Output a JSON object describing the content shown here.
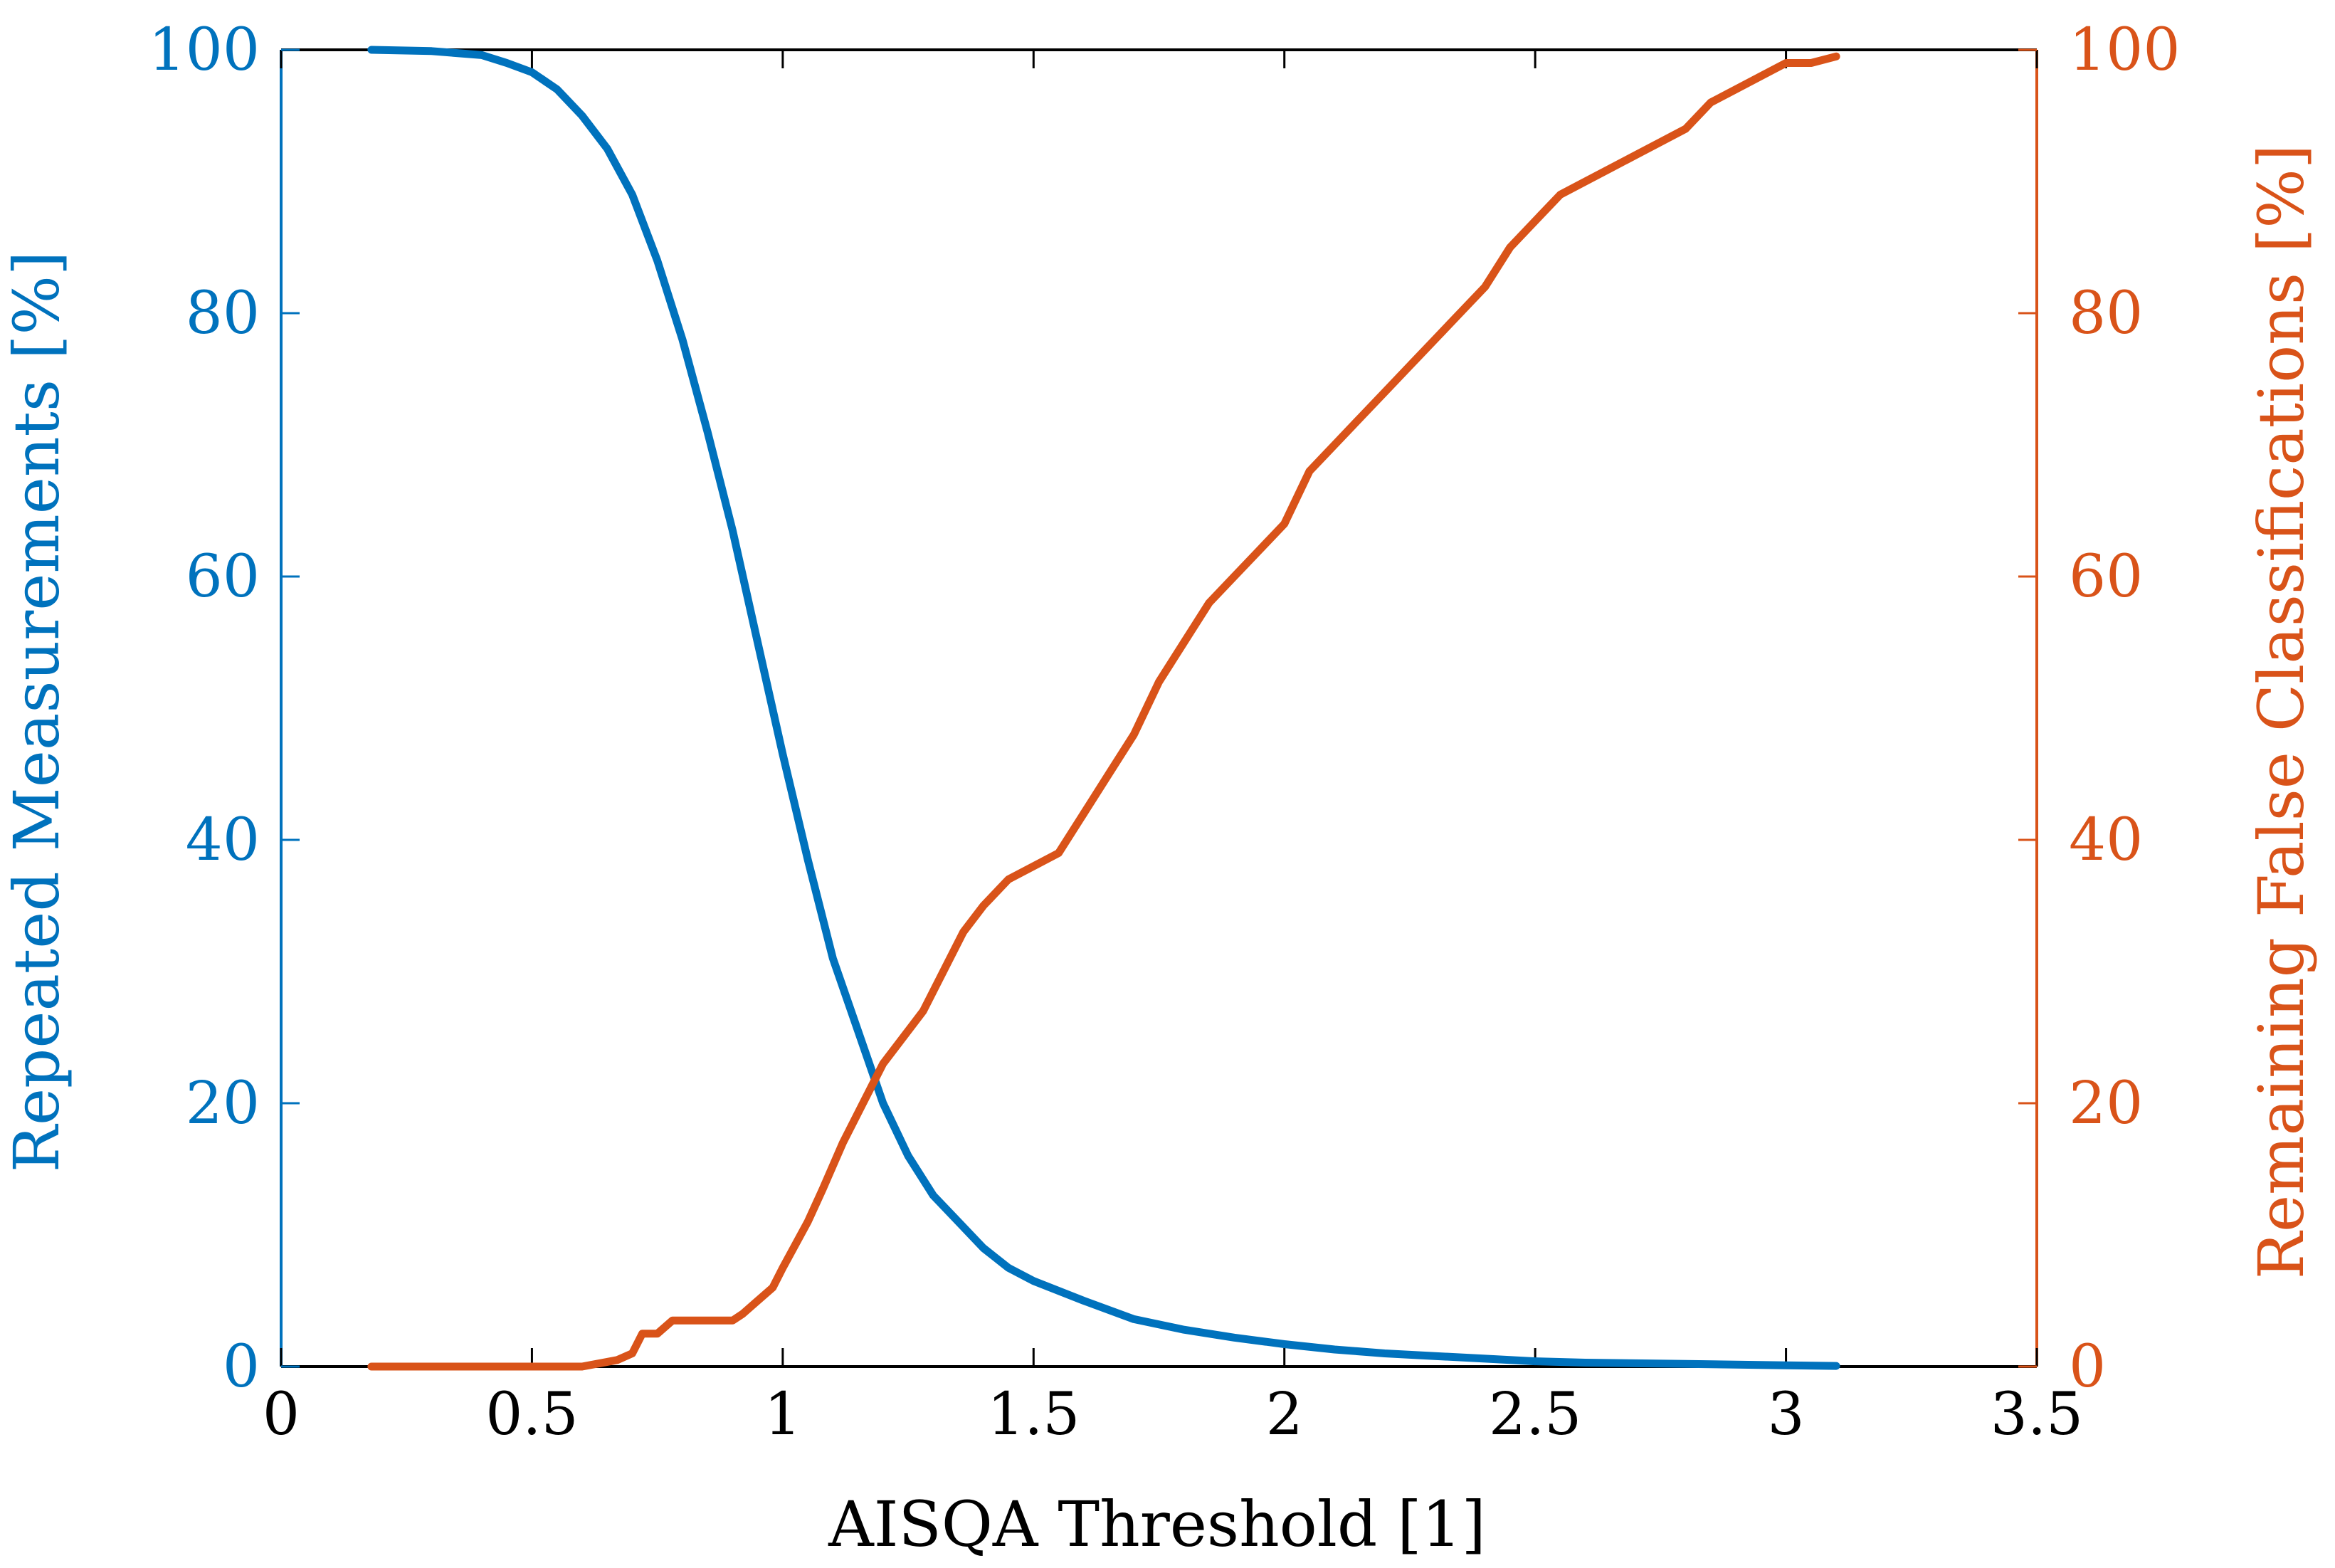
{
  "chart_data": {
    "type": "line",
    "xlabel": "AISQA Threshold [1]",
    "ylabel_left": "Repeated Measurements [%]",
    "ylabel_right": "Remaining False Classifications [%]",
    "xlim": [
      0,
      3.5
    ],
    "ylim_left": [
      0,
      100
    ],
    "ylim_right": [
      0,
      100
    ],
    "x_ticks": [
      "0",
      "0.5",
      "1",
      "1.5",
      "2",
      "2.5",
      "3",
      "3.5"
    ],
    "y_ticks_left": [
      "0",
      "20",
      "40",
      "60",
      "80",
      "100"
    ],
    "y_ticks_right": [
      "0",
      "20",
      "40",
      "60",
      "80",
      "100"
    ],
    "grid": false,
    "colors": {
      "left": "#0072bd",
      "right": "#d95319",
      "axis": "#000000"
    },
    "series": [
      {
        "axis": "left",
        "x": [
          0.18,
          0.3,
          0.4,
          0.45,
          0.5,
          0.55,
          0.6,
          0.65,
          0.7,
          0.75,
          0.8,
          0.85,
          0.9,
          0.95,
          1.0,
          1.05,
          1.1,
          1.15,
          1.2,
          1.25,
          1.3,
          1.35,
          1.4,
          1.45,
          1.5,
          1.6,
          1.7,
          1.8,
          1.9,
          2.0,
          2.1,
          2.2,
          2.3,
          2.4,
          2.5,
          2.6,
          2.8,
          3.0,
          3.1
        ],
        "y": [
          100,
          99.9,
          99.6,
          99.0,
          98.3,
          97.0,
          95.0,
          92.5,
          89.0,
          84.0,
          78.0,
          71.0,
          63.5,
          55.0,
          46.5,
          38.5,
          31.0,
          25.5,
          20.0,
          16.0,
          13.0,
          11.0,
          9.0,
          7.5,
          6.5,
          5.0,
          3.6,
          2.8,
          2.2,
          1.7,
          1.3,
          1.0,
          0.8,
          0.6,
          0.4,
          0.3,
          0.2,
          0.1,
          0.05
        ]
      },
      {
        "axis": "right",
        "x": [
          0.18,
          0.6,
          0.67,
          0.7,
          0.72,
          0.75,
          0.78,
          0.8,
          0.9,
          0.92,
          0.95,
          0.98,
          1.0,
          1.05,
          1.08,
          1.12,
          1.16,
          1.2,
          1.24,
          1.28,
          1.32,
          1.36,
          1.4,
          1.45,
          1.5,
          1.55,
          1.6,
          1.65,
          1.7,
          1.75,
          1.8,
          1.85,
          1.9,
          1.95,
          2.0,
          2.05,
          2.1,
          2.15,
          2.2,
          2.25,
          2.3,
          2.35,
          2.4,
          2.45,
          2.5,
          2.55,
          2.6,
          2.65,
          2.7,
          2.75,
          2.8,
          2.85,
          2.9,
          2.95,
          3.0,
          3.05,
          3.1
        ],
        "y": [
          0,
          0,
          0.5,
          1,
          2.5,
          2.5,
          3.5,
          3.5,
          3.5,
          4,
          5,
          6,
          7.5,
          11,
          13.5,
          17,
          20,
          23,
          25,
          27,
          30,
          33,
          35,
          37,
          38,
          39,
          42,
          45,
          48,
          52,
          55,
          58,
          60,
          62,
          64,
          68,
          70,
          72,
          74,
          76,
          78,
          80,
          82,
          85,
          87,
          89,
          90,
          91,
          92,
          93,
          94,
          96,
          97,
          98,
          99,
          99,
          99.5
        ]
      }
    ]
  }
}
